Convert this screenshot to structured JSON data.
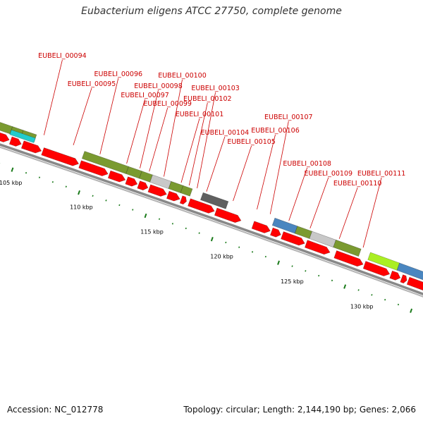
{
  "title": "Eubacterium eligens ATCC 27750, complete genome",
  "accession": "Accession: NC_012778",
  "footer": "Topology: circular; Length: 2,144,190 bp; Genes: 2,066",
  "colors": {
    "gene": "#ff0000",
    "backbone": "#888888",
    "tick": "#1a7a1a",
    "label": "#cc0000",
    "olive": "#7a9a30",
    "cyan": "#22cccc",
    "gray": "#c8c8c8",
    "darkgray": "#606060",
    "steelblue": "#4a86c0",
    "lime": "#aaee22",
    "navy": "#0a0a80"
  },
  "gene_labels": [
    "EUBELI_00094",
    "EUBELI_00095",
    "EUBELI_00096",
    "EUBELI_00097",
    "EUBELI_00098",
    "EUBELI_00099",
    "EUBELI_00100",
    "EUBELI_00101",
    "EUBELI_00102",
    "EUBELI_00103",
    "EUBELI_00104",
    "EUBELI_00105",
    "EUBELI_00106",
    "EUBELI_00107",
    "EUBELI_00108",
    "EUBELI_00109",
    "EUBELI_00110",
    "EUBELI_00111"
  ],
  "ticks": [
    "105 kbp",
    "110 kbp",
    "115 kbp",
    "120 kbp",
    "125 kbp",
    "130 kbp"
  ]
}
